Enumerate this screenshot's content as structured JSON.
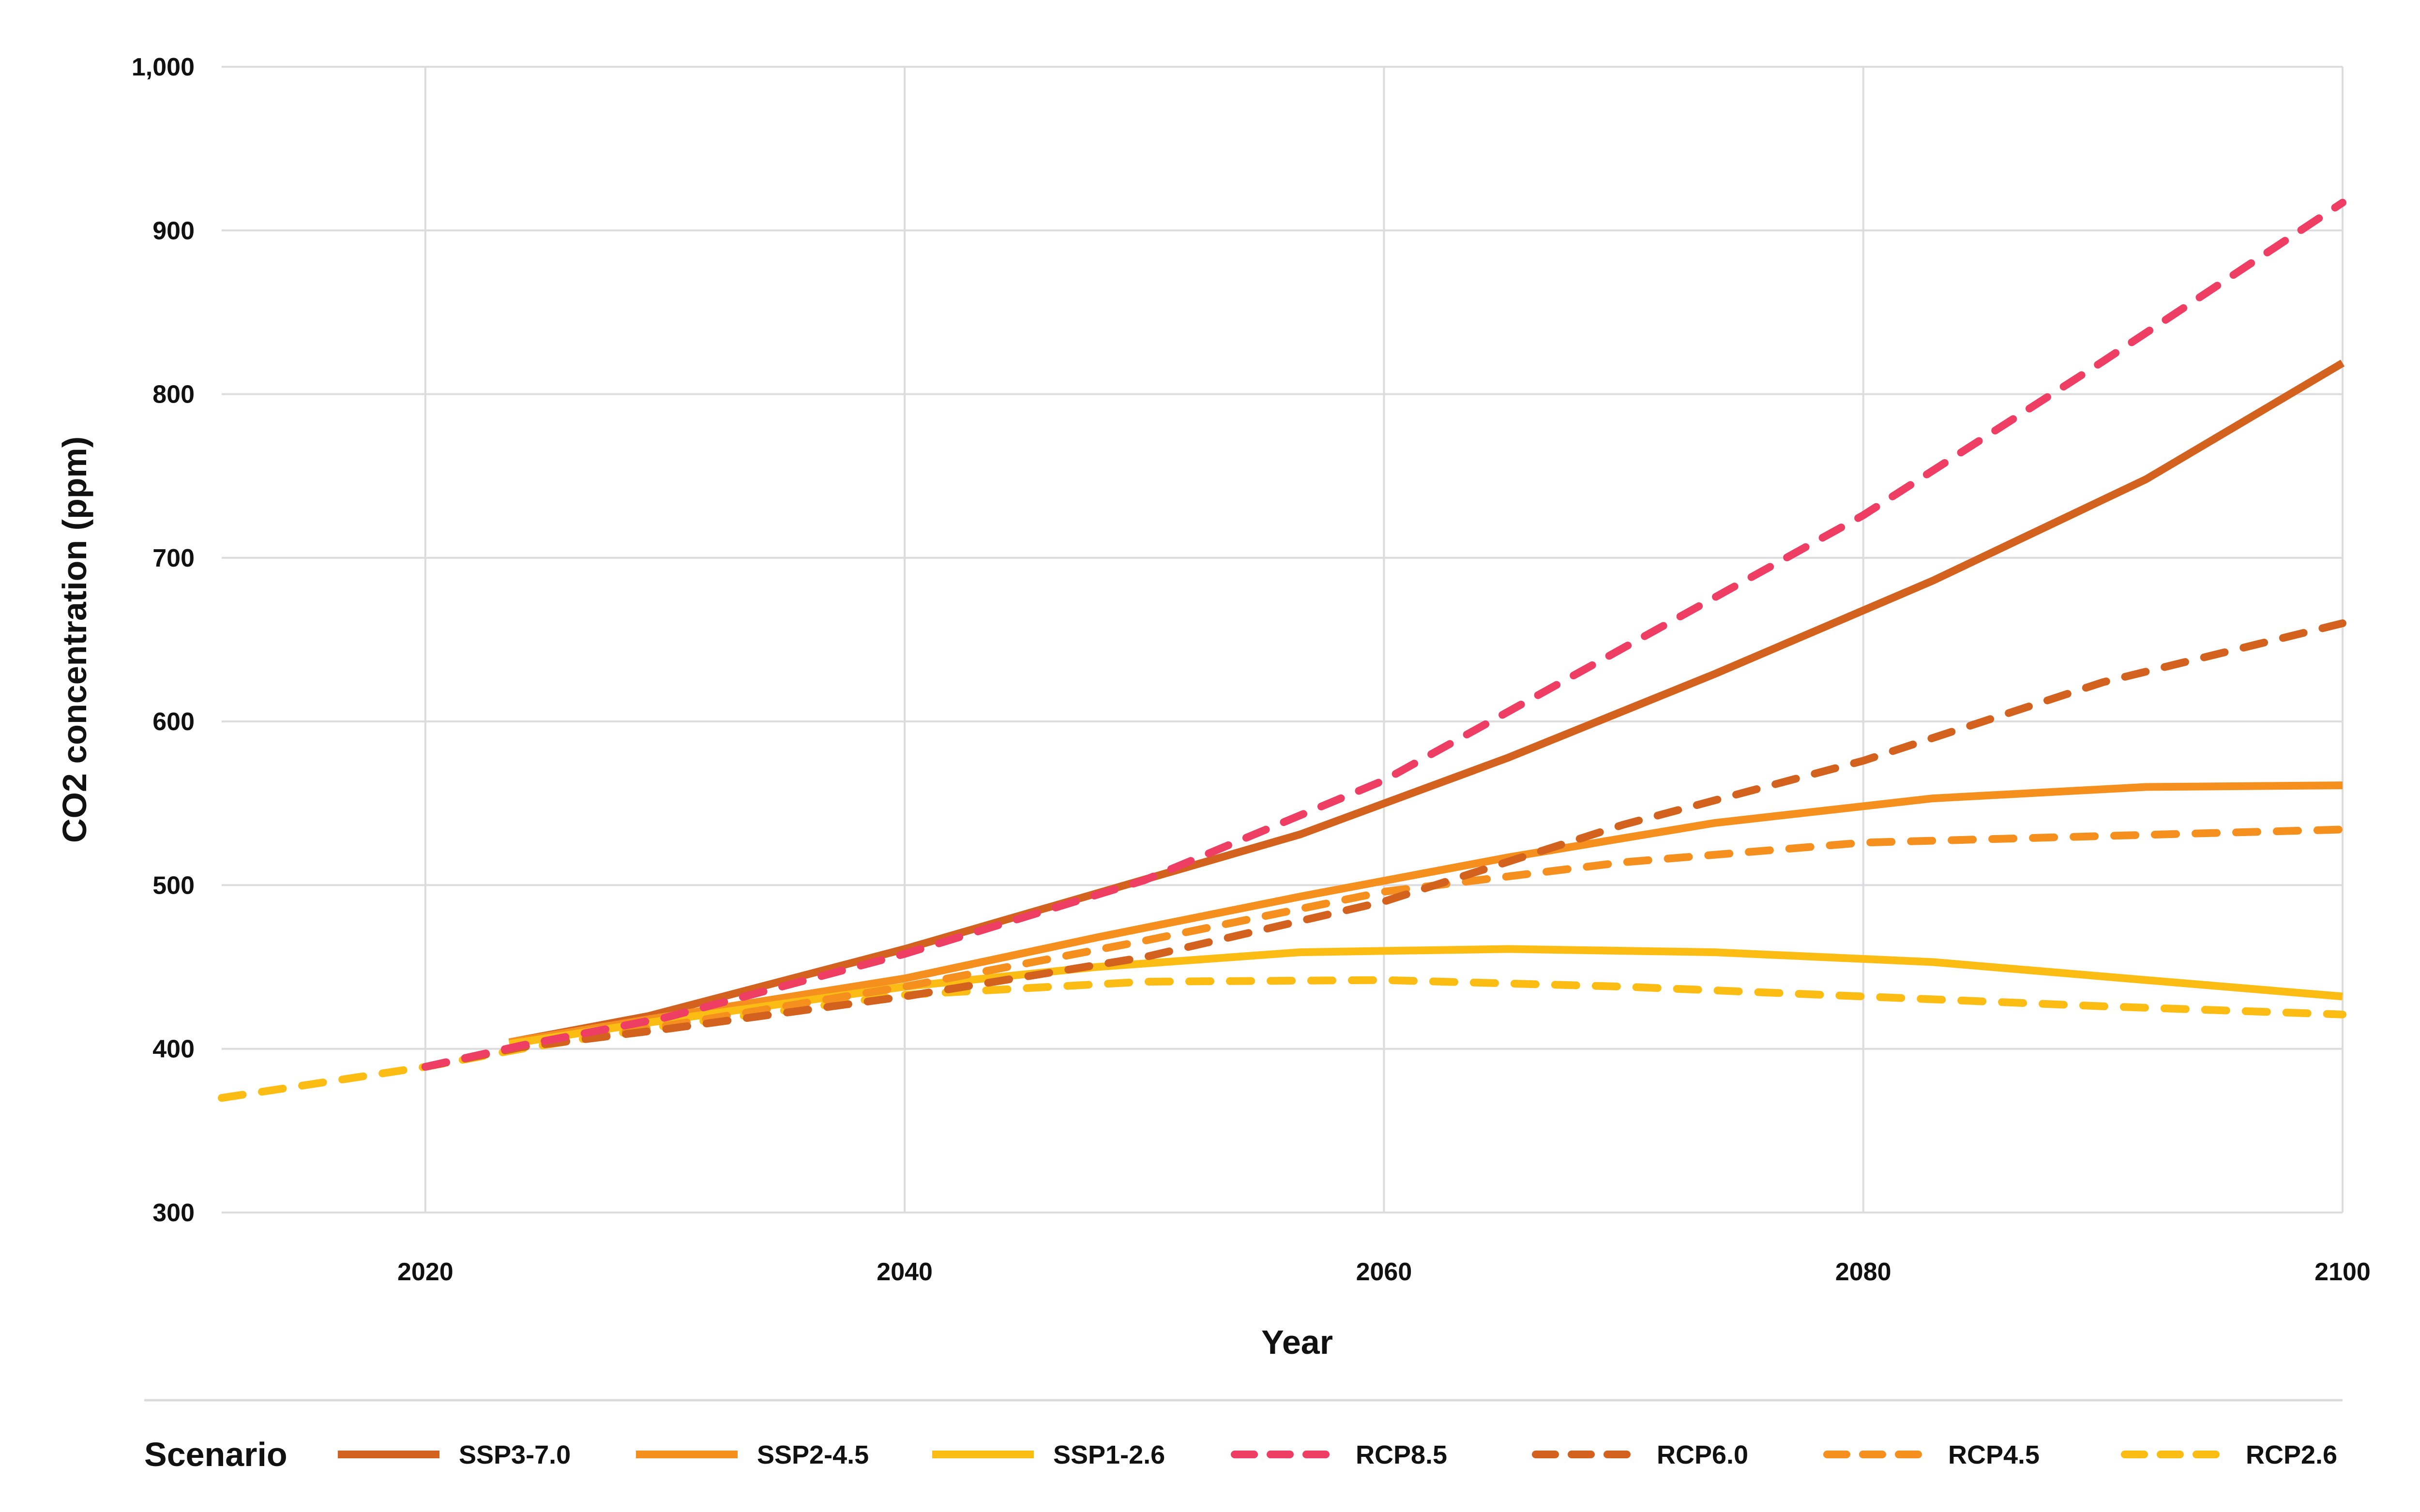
{
  "chart_data": {
    "type": "line",
    "title": "",
    "xlabel": "Year",
    "ylabel": "CO2 concentration (ppm)",
    "xlim": [
      2011.5,
      2100
    ],
    "ylim": [
      300,
      1000
    ],
    "xticks": [
      2020,
      2040,
      2060,
      2080,
      2100
    ],
    "xtick_labels": [
      "2020",
      "2040",
      "2060",
      "2080",
      "2100"
    ],
    "yticks": [
      300,
      400,
      500,
      600,
      700,
      800,
      900,
      1000
    ],
    "ytick_labels": [
      "300",
      "400",
      "500",
      "600",
      "700",
      "800",
      "900",
      "1,000"
    ],
    "grid": true,
    "legend": {
      "title": "Scenario",
      "placement": "bottom"
    },
    "series": [
      {
        "name": "SSP3-7.0",
        "style": "solid",
        "color": "#D4621F",
        "points": [
          [
            2023.5,
            404
          ],
          [
            2029.3,
            420
          ],
          [
            2040,
            461
          ],
          [
            2056.5,
            531
          ],
          [
            2065.2,
            578
          ],
          [
            2073.8,
            629
          ],
          [
            2082.9,
            686
          ],
          [
            2091.8,
            748
          ],
          [
            2100,
            819
          ]
        ]
      },
      {
        "name": "SSP2-4.5",
        "style": "solid",
        "color": "#F5901E",
        "points": [
          [
            2023.5,
            404
          ],
          [
            2029.3,
            418
          ],
          [
            2040,
            443
          ],
          [
            2048,
            468
          ],
          [
            2056.5,
            493
          ],
          [
            2065.2,
            517
          ],
          [
            2073.8,
            538
          ],
          [
            2082.9,
            553
          ],
          [
            2091.8,
            560
          ],
          [
            2100,
            561
          ]
        ]
      },
      {
        "name": "SSP1-2.6",
        "style": "solid",
        "color": "#FBBC14",
        "points": [
          [
            2023.5,
            403
          ],
          [
            2029.3,
            416
          ],
          [
            2040,
            438
          ],
          [
            2048,
            450
          ],
          [
            2056.5,
            459
          ],
          [
            2065.2,
            461
          ],
          [
            2073.8,
            459
          ],
          [
            2082.9,
            453
          ],
          [
            2091.8,
            442
          ],
          [
            2100,
            432
          ]
        ]
      },
      {
        "name": "RCP8.5",
        "style": "dashed",
        "color": "#EE3E63",
        "points": [
          [
            2020,
            389
          ],
          [
            2024,
            402
          ],
          [
            2030,
            419
          ],
          [
            2040,
            458
          ],
          [
            2050,
            503
          ],
          [
            2060,
            564
          ],
          [
            2070,
            645
          ],
          [
            2080,
            726
          ],
          [
            2090,
            820
          ],
          [
            2100,
            917
          ]
        ]
      },
      {
        "name": "RCP6.0",
        "style": "dashed",
        "color": "#D4621F",
        "points": [
          [
            2020,
            389
          ],
          [
            2024,
            401
          ],
          [
            2030,
            412
          ],
          [
            2040,
            432
          ],
          [
            2050,
            456
          ],
          [
            2060,
            490
          ],
          [
            2070,
            537
          ],
          [
            2080,
            576
          ],
          [
            2090,
            624
          ],
          [
            2100,
            660
          ]
        ]
      },
      {
        "name": "RCP4.5",
        "style": "dashed",
        "color": "#F5901E",
        "points": [
          [
            2020,
            389
          ],
          [
            2024,
            401
          ],
          [
            2030,
            414
          ],
          [
            2040,
            438
          ],
          [
            2050,
            466
          ],
          [
            2060,
            496
          ],
          [
            2070,
            514
          ],
          [
            2080,
            526
          ],
          [
            2090,
            530
          ],
          [
            2100,
            534
          ]
        ]
      },
      {
        "name": "RCP2.6",
        "style": "dashed",
        "color": "#FBBC14",
        "points": [
          [
            2011.5,
            370
          ],
          [
            2020,
            389
          ],
          [
            2024,
            400
          ],
          [
            2030,
            414
          ],
          [
            2040,
            433
          ],
          [
            2050,
            441
          ],
          [
            2060,
            442
          ],
          [
            2070,
            438
          ],
          [
            2080,
            432
          ],
          [
            2090,
            426
          ],
          [
            2100,
            421
          ]
        ]
      }
    ]
  }
}
